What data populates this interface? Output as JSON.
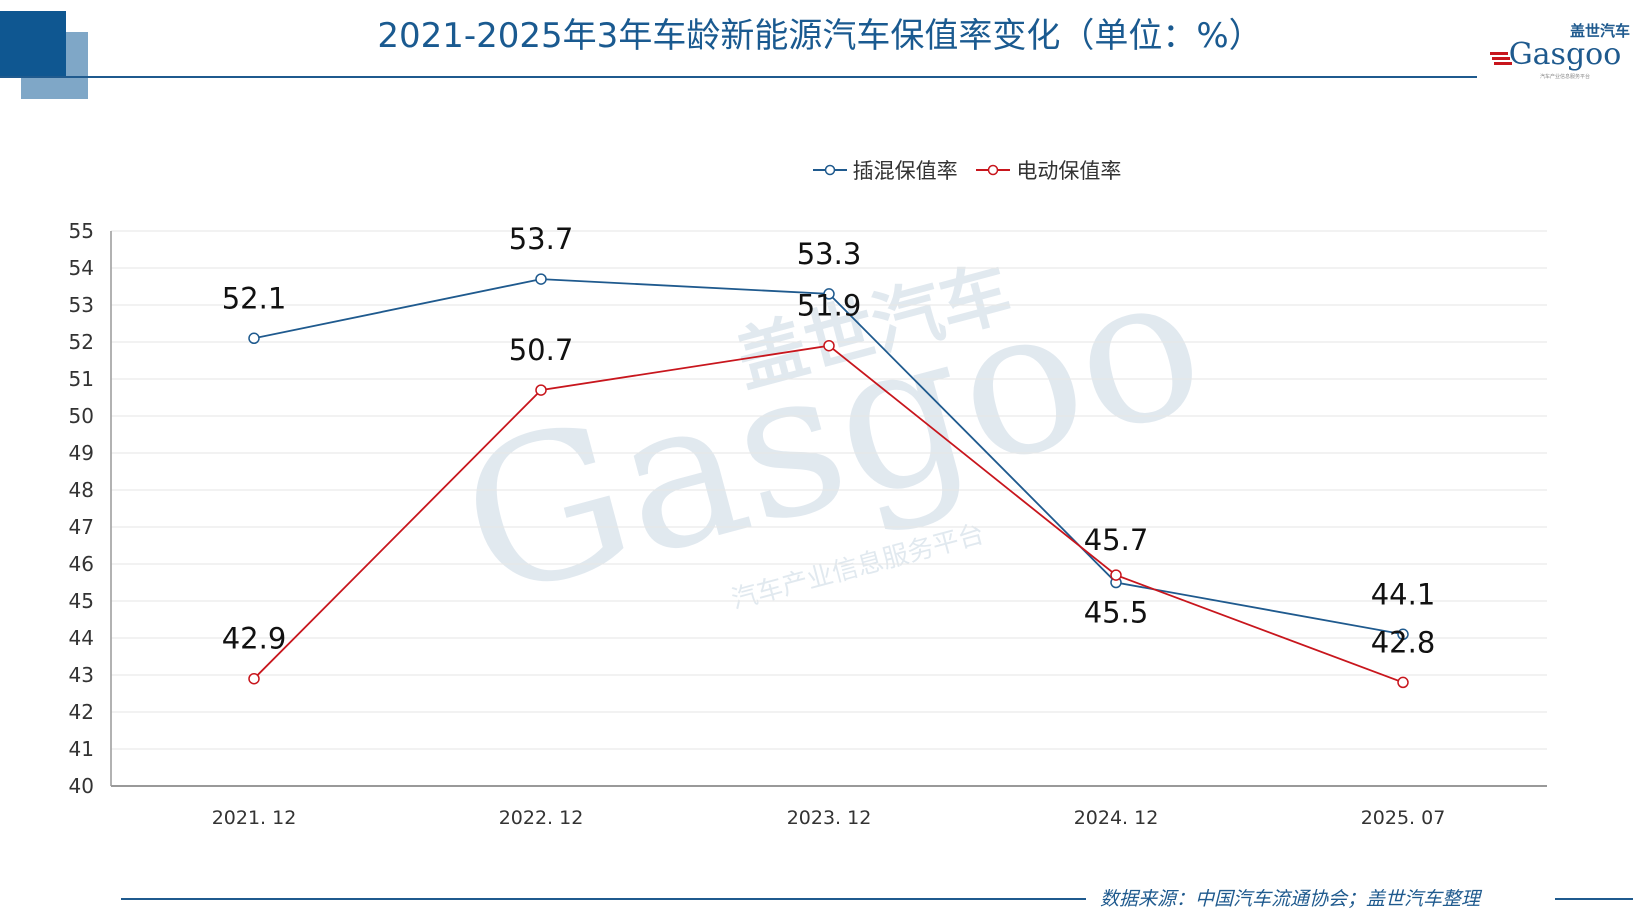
{
  "title": "2021-2025年3年车龄新能源汽车保值率变化（单位：%）",
  "logo": {
    "cn": "盖世汽车",
    "en": "Gasgoo",
    "tagline": "汽车产业信息服务平台"
  },
  "watermark": {
    "cn": "盖世汽车",
    "en": "Gasgoo",
    "tagline": "汽车产业信息服务平台"
  },
  "source": "数据来源：中国汽车流通协会；盖世汽车整理",
  "colors": {
    "title": "#1a5a90",
    "phev": "#1f5a8e",
    "ev": "#c8161d"
  },
  "chart_data": {
    "type": "line",
    "title": "2021-2025年3年车龄新能源汽车保值率变化（单位：%）",
    "categories": [
      "2021. 12",
      "2022. 12",
      "2023. 12",
      "2024. 12",
      "2025. 07"
    ],
    "ylim": [
      40,
      55
    ],
    "yticks": [
      40,
      41,
      42,
      43,
      44,
      45,
      46,
      47,
      48,
      49,
      50,
      51,
      52,
      53,
      54,
      55
    ],
    "grid": true,
    "legend": "top",
    "series": [
      {
        "name": "插混保值率",
        "color": "#1f5a8e",
        "values": [
          52.1,
          53.7,
          53.3,
          45.5,
          44.1
        ]
      },
      {
        "name": "电动保值率",
        "color": "#c8161d",
        "values": [
          42.9,
          50.7,
          51.9,
          45.7,
          42.8
        ]
      }
    ]
  }
}
